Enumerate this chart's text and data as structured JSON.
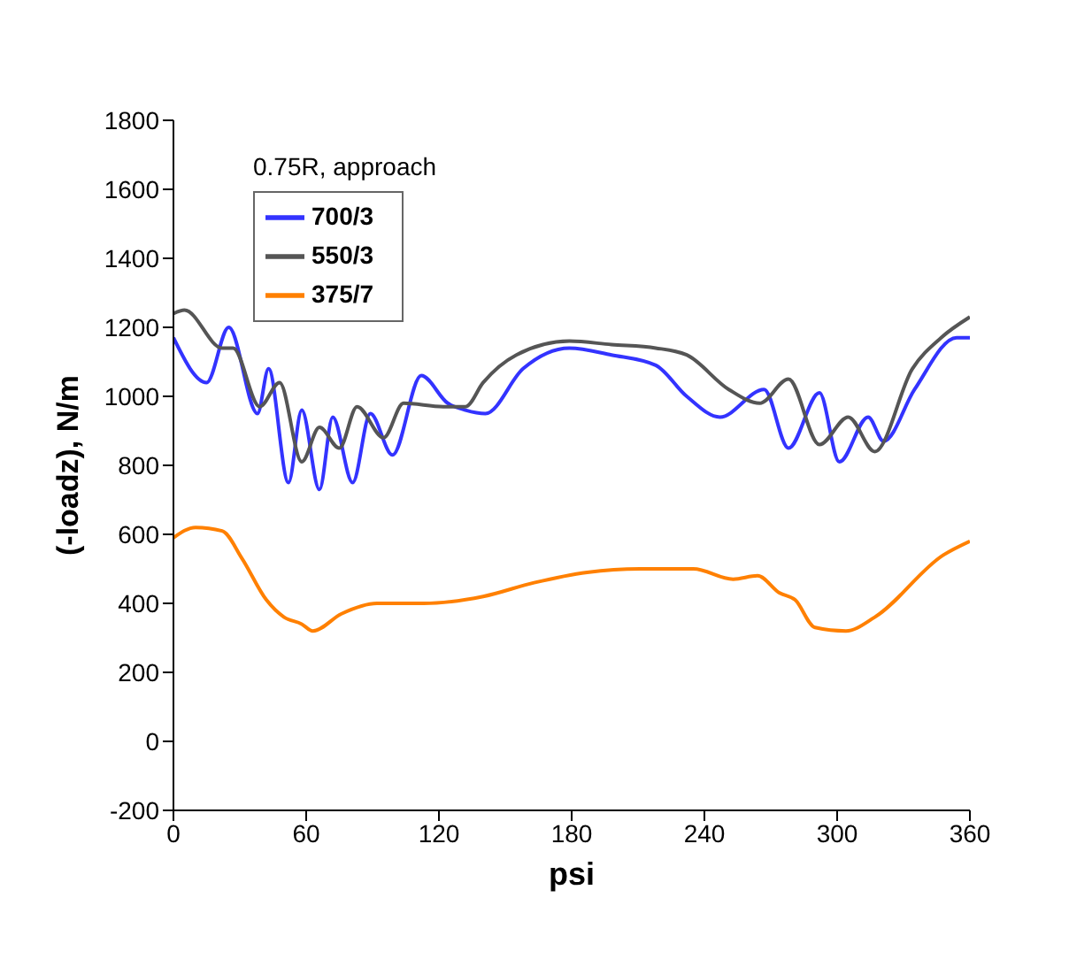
{
  "chart_data": {
    "type": "line",
    "xlabel": "psi",
    "ylabel": "(-loadz), N/m",
    "legend_title": "0.75R, approach",
    "legend": "top left",
    "marker": "none",
    "line_style": "solid",
    "xlim": [
      0,
      360
    ],
    "xticks": [
      0,
      60,
      120,
      180,
      240,
      300,
      360
    ],
    "ylim": [
      -200,
      1800
    ],
    "yticks": [
      -200,
      0,
      200,
      400,
      600,
      800,
      1000,
      1200,
      1400,
      1600,
      1800
    ],
    "series": [
      {
        "name": "700/3",
        "color": "#3333ff",
        "x": [
          0,
          15,
          25,
          38,
          43,
          52,
          58,
          66,
          72,
          81,
          89,
          99,
          112,
          124,
          132,
          141,
          158,
          179,
          198,
          218,
          232,
          247,
          267,
          278,
          292,
          301,
          314,
          321,
          335,
          354,
          360
        ],
        "values": [
          1170,
          1040,
          1200,
          950,
          1080,
          750,
          960,
          730,
          940,
          750,
          950,
          830,
          1060,
          980,
          960,
          950,
          1080,
          1140,
          1120,
          1090,
          1000,
          940,
          1020,
          850,
          1010,
          810,
          940,
          870,
          1020,
          1170,
          1170
        ]
      },
      {
        "name": "550/3",
        "color": "#555555",
        "x": [
          0,
          5,
          22,
          27,
          39,
          48,
          58,
          66,
          75,
          83,
          95,
          104,
          122,
          132,
          140,
          155,
          179,
          198,
          218,
          232,
          251,
          265,
          278,
          292,
          305,
          317,
          334,
          347,
          360
        ],
        "values": [
          1240,
          1250,
          1140,
          1140,
          970,
          1040,
          810,
          910,
          850,
          970,
          880,
          980,
          970,
          970,
          1040,
          1120,
          1160,
          1150,
          1140,
          1120,
          1020,
          980,
          1050,
          860,
          940,
          840,
          1080,
          1170,
          1230
        ]
      },
      {
        "name": "375/7",
        "color": "#ff8000",
        "x": [
          0,
          10,
          22,
          31,
          42,
          50,
          58,
          63,
          76,
          92,
          113,
          140,
          163,
          187,
          211,
          235,
          253,
          264,
          274,
          281,
          290,
          304,
          317,
          348,
          360
        ],
        "values": [
          590,
          620,
          610,
          530,
          410,
          360,
          340,
          320,
          370,
          400,
          400,
          420,
          460,
          490,
          500,
          500,
          470,
          480,
          430,
          410,
          330,
          320,
          360,
          540,
          580
        ]
      }
    ]
  }
}
